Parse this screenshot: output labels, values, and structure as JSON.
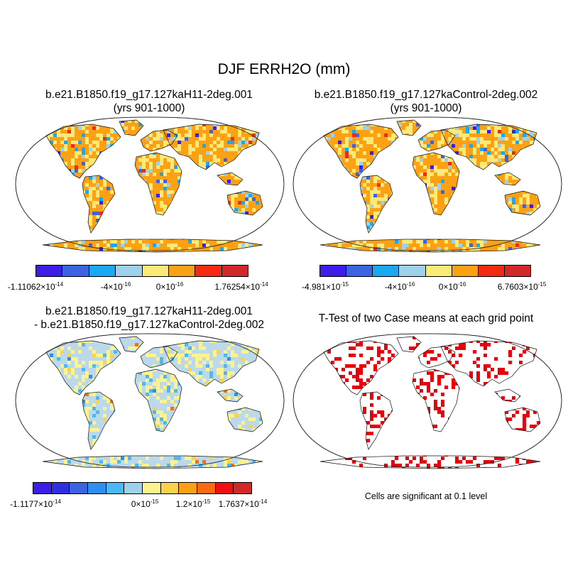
{
  "title": "DJF ERRH2O (mm)",
  "panels": [
    {
      "name": "case1",
      "title_line1": "b.e21.B1850.f19_g17.127kaH11-2deg.001",
      "title_line2": "(yrs 901-1000)",
      "colorbar": {
        "colors": [
          "#3b1fe8",
          "#3d64e0",
          "#1aa8f5",
          "#9ed2ec",
          "#fbe978",
          "#fca114",
          "#f42a13",
          "#d2282c"
        ],
        "labels": [
          {
            "mant": "-1.11062",
            "exp": "-14"
          },
          {
            "mant": "-4",
            "exp": "-16"
          },
          {
            "mant": "0",
            "exp": "-16"
          },
          {
            "mant": "1.76254",
            "exp": "-14"
          }
        ]
      }
    },
    {
      "name": "case2",
      "title_line1": "b.e21.B1850.f19_g17.127kaControl-2deg.002",
      "title_line2": "(yrs 901-1000)",
      "colorbar": {
        "colors": [
          "#3b1fe8",
          "#3d64e0",
          "#1aa8f5",
          "#9ed2ec",
          "#fbe978",
          "#fca114",
          "#f42a13",
          "#d2282c"
        ],
        "labels": [
          {
            "mant": "-4.981",
            "exp": "-15"
          },
          {
            "mant": "-4",
            "exp": "-16"
          },
          {
            "mant": "0",
            "exp": "-16"
          },
          {
            "mant": "6.7603",
            "exp": "-15"
          }
        ]
      }
    },
    {
      "name": "difference",
      "title_line1": "b.e21.B1850.f19_g17.127kaH11-2deg.001",
      "title_line2": "- b.e21.B1850.f19_g17.127kaControl-2deg.002",
      "colorbar": {
        "colors": [
          "#3b1fe8",
          "#3030e0",
          "#3d64e0",
          "#2e8ff0",
          "#4cb8f5",
          "#9ed2ec",
          "#fbf38e",
          "#fbd24a",
          "#fca114",
          "#fc6a14",
          "#f01010",
          "#d2282c"
        ],
        "labels": [
          {
            "mant": "-1.1177",
            "exp": "-14"
          },
          {
            "mant": "0",
            "exp": "-15"
          },
          {
            "mant": "1.2",
            "exp": "-15"
          },
          {
            "mant": "1.7637",
            "exp": "-14"
          }
        ]
      }
    },
    {
      "name": "ttest",
      "title_line1": "T-Test of two Case means at each grid point",
      "note": "Cells are significant at 0.1 level"
    }
  ],
  "colors": {
    "land_case": "#fca114",
    "land_diff": "#bcd9ec",
    "significant": "#e8000b"
  }
}
